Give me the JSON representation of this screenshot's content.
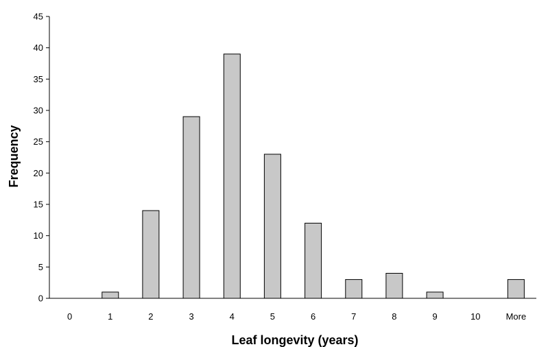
{
  "chart_data": {
    "type": "bar",
    "title": "",
    "xlabel": "Leaf longevity (years)",
    "ylabel": "Frequency",
    "categories": [
      "0",
      "1",
      "2",
      "3",
      "4",
      "5",
      "6",
      "7",
      "8",
      "9",
      "10",
      "More"
    ],
    "values": [
      0,
      1,
      14,
      29,
      39,
      23,
      12,
      3,
      4,
      1,
      0,
      3
    ],
    "ylim": [
      0,
      45
    ],
    "yticks": [
      0,
      5,
      10,
      15,
      20,
      25,
      30,
      35,
      40,
      45
    ],
    "grid": false,
    "legend": "none",
    "bar_color": "#c8c8c8",
    "bar_edge_color": "#000000"
  }
}
